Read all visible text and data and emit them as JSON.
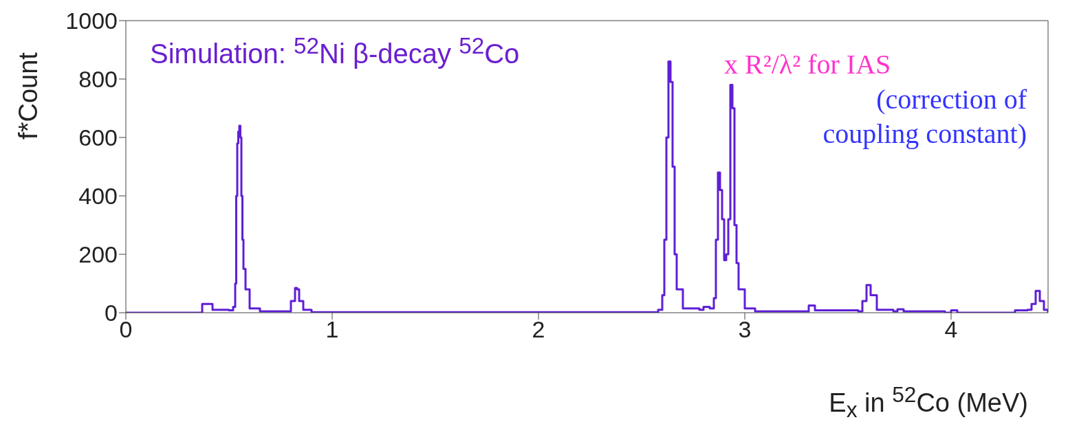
{
  "chart_data": {
    "type": "step",
    "title": "Simulation: $^{52}$Ni β-decay $^{52}$Co",
    "xlabel": "E$_{x}$ in $^{52}$Co (MeV)",
    "ylabel": "f*Count",
    "annotations": [
      "x R²/λ² for IAS",
      "(correction of coupling constant)"
    ],
    "x": [
      0,
      0.3,
      0.37,
      0.38,
      0.41,
      0.42,
      0.5,
      0.52,
      0.53,
      0.535,
      0.54,
      0.545,
      0.55,
      0.555,
      0.56,
      0.565,
      0.57,
      0.58,
      0.6,
      0.65,
      0.78,
      0.8,
      0.82,
      0.83,
      0.84,
      0.86,
      0.9,
      2.5,
      2.58,
      2.6,
      2.61,
      2.62,
      2.63,
      2.64,
      2.65,
      2.66,
      2.67,
      2.7,
      2.78,
      2.8,
      2.83,
      2.85,
      2.86,
      2.87,
      2.88,
      2.89,
      2.9,
      2.91,
      2.92,
      2.93,
      2.94,
      2.95,
      2.96,
      2.97,
      3.0,
      3.05,
      3.28,
      3.31,
      3.34,
      3.55,
      3.57,
      3.59,
      3.61,
      3.64,
      3.72,
      3.74,
      3.77,
      3.97,
      4.0,
      4.03,
      4.28,
      4.31,
      4.37,
      4.39,
      4.41,
      4.43,
      4.45,
      4.47
    ],
    "values": [
      0,
      0,
      30,
      30,
      30,
      10,
      8,
      20,
      100,
      400,
      580,
      620,
      640,
      600,
      400,
      250,
      150,
      80,
      15,
      5,
      5,
      40,
      85,
      80,
      40,
      10,
      2,
      2,
      10,
      60,
      250,
      600,
      860,
      790,
      500,
      200,
      80,
      15,
      10,
      20,
      15,
      50,
      250,
      480,
      420,
      320,
      180,
      200,
      320,
      780,
      700,
      300,
      170,
      80,
      15,
      5,
      5,
      25,
      8,
      5,
      40,
      95,
      60,
      10,
      5,
      12,
      5,
      0,
      8,
      0,
      0,
      8,
      10,
      30,
      75,
      40,
      10,
      0
    ],
    "color": "#5e1fd6",
    "marker": "none",
    "grid": false,
    "legend": false,
    "xlim": [
      0,
      4.47
    ],
    "xticks": [
      0,
      1,
      2,
      3,
      4
    ],
    "ylim": [
      0,
      1000
    ],
    "yticks": [
      0,
      200,
      400,
      600,
      800,
      1000
    ]
  }
}
